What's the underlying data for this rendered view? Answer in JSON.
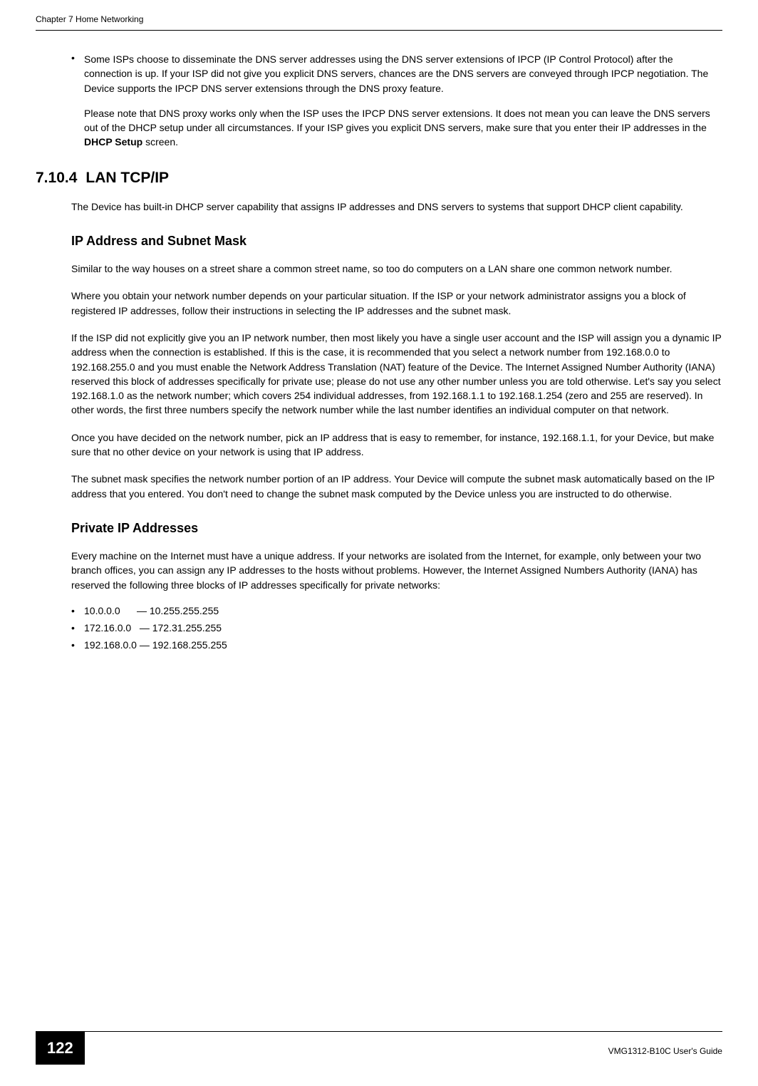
{
  "header": {
    "chapter": "Chapter 7 Home Networking"
  },
  "bullet1": {
    "text": "Some ISPs choose to disseminate the DNS server addresses using the DNS server extensions of IPCP (IP Control Protocol) after the connection is up. If your ISP did not give you explicit DNS servers, chances are the DNS servers are conveyed through IPCP negotiation. The Device supports the IPCP DNS server extensions through the DNS proxy feature."
  },
  "note_para": {
    "text_before": "Please note that DNS proxy works only when the ISP uses the IPCP DNS server extensions. It does not mean you can leave the DNS servers out of the DHCP setup under all circumstances. If your ISP gives you explicit DNS servers, make sure that you enter their IP addresses in the ",
    "bold": "DHCP Setup",
    "text_after": " screen."
  },
  "section": {
    "number": "7.10.4",
    "title": "LAN TCP/IP"
  },
  "intro_para": "The Device has built-in DHCP server capability that assigns IP addresses and DNS servers to systems that support DHCP client capability.",
  "subsection1": {
    "title": "IP Address and Subnet Mask"
  },
  "para1": "Similar to the way houses on a street share a common street name, so too do computers on a LAN share one common network number.",
  "para2": "Where you obtain your network number depends on your particular situation. If the ISP or your network administrator assigns you a block of registered IP addresses, follow their instructions in selecting the IP addresses and the subnet mask.",
  "para3": "If the ISP did not explicitly give you an IP network number, then most likely you have a single user account and the ISP will assign you a dynamic IP address when the connection is established. If this is the case, it is recommended that you select a network number from 192.168.0.0 to 192.168.255.0 and you must enable the Network Address Translation (NAT) feature of the Device. The Internet Assigned Number Authority (IANA) reserved this block of addresses specifically for private use; please do not use any other number unless you are told otherwise. Let's say you select 192.168.1.0 as the network number; which covers 254 individual addresses, from 192.168.1.1 to 192.168.1.254 (zero and 255 are reserved). In other words, the first three numbers specify the network number while the last number identifies an individual computer on that network.",
  "para4": "Once you have decided on the network number, pick an IP address that is easy to remember, for instance, 192.168.1.1, for your Device, but make sure that no other device on your network is using that IP address.",
  "para5": "The subnet mask specifies the network number portion of an IP address. Your Device will compute the subnet mask automatically based on the IP address that you entered. You don't need to change the subnet mask computed by the Device unless you are instructed to do otherwise.",
  "subsection2": {
    "title": "Private IP Addresses"
  },
  "para6": "Every machine on the Internet must have a unique address. If your networks are isolated from the Internet, for example, only between your two branch offices, you can assign any IP addresses to the hosts without problems. However, the Internet Assigned Numbers Authority (IANA) has reserved the following three blocks of IP addresses specifically for private networks:",
  "ranges": {
    "r1": "10.0.0.0      — 10.255.255.255",
    "r2": "172.16.0.0   — 172.31.255.255",
    "r3": "192.168.0.0 — 192.168.255.255"
  },
  "footer": {
    "page": "122",
    "guide": "VMG1312-B10C User's Guide"
  }
}
